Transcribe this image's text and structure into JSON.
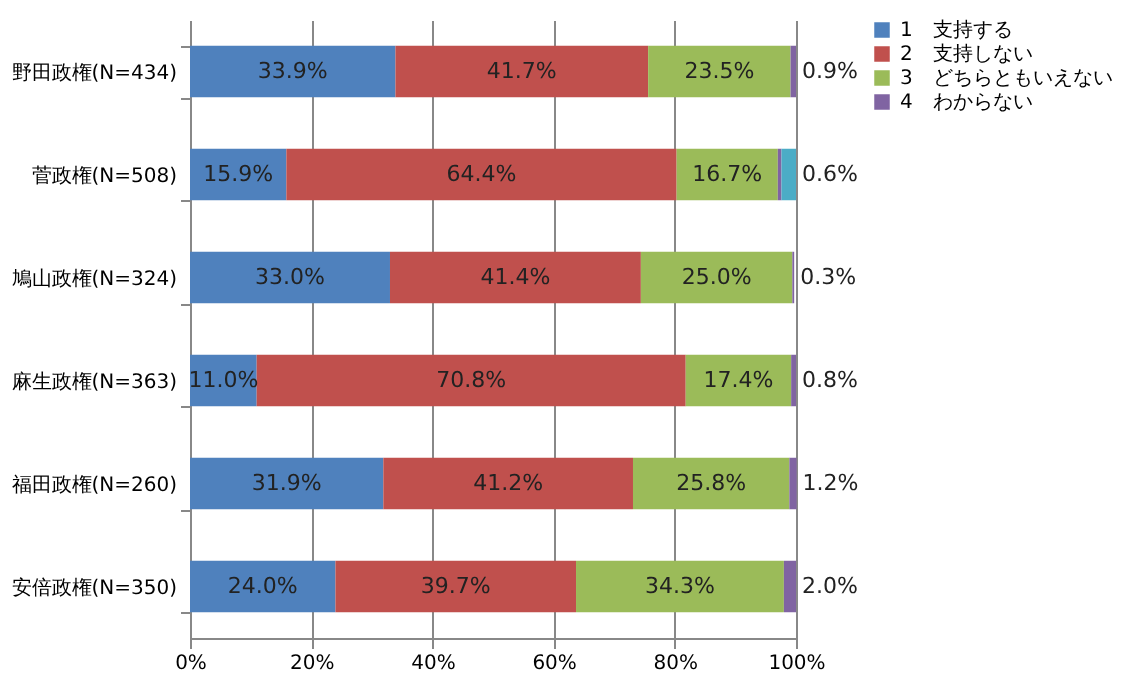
{
  "chart_data": {
    "type": "bar",
    "orientation": "horizontal",
    "stacked": true,
    "categories": [
      "野田政権(N=434)",
      "菅政権(N=508)",
      "鳩山政権(N=324)",
      "麻生政権(N=363)",
      "福田政権(N=260)",
      "安倍政権(N=350)"
    ],
    "series": [
      {
        "name": "1　支持する",
        "color": "#4f81bd",
        "values": [
          33.9,
          15.9,
          33.0,
          11.0,
          31.9,
          24.0
        ],
        "value_labels": [
          "33.9%",
          "15.9%",
          "33.0%",
          "11.0%",
          "31.9%",
          "24.0%"
        ]
      },
      {
        "name": "2　支持しない",
        "color": "#c0504d",
        "values": [
          41.7,
          64.4,
          41.4,
          70.8,
          41.2,
          39.7
        ],
        "value_labels": [
          "41.7%",
          "64.4%",
          "41.4%",
          "70.8%",
          "41.2%",
          "39.7%"
        ]
      },
      {
        "name": "3　どちらともいえない",
        "color": "#9bbb59",
        "values": [
          23.5,
          16.7,
          25.0,
          17.4,
          25.8,
          34.3
        ],
        "value_labels": [
          "23.5%",
          "16.7%",
          "25.0%",
          "17.4%",
          "25.8%",
          "34.3%"
        ]
      },
      {
        "name": "4　わからない",
        "color": "#8064a2",
        "values": [
          0.9,
          0.6,
          0.3,
          0.8,
          1.2,
          2.0
        ],
        "value_labels": [
          "0.9%",
          "0.6%",
          "0.3%",
          "0.8%",
          "1.2%",
          "2.0%"
        ]
      },
      {
        "color": "#4bacc6",
        "values": [
          null,
          2.4,
          null,
          null,
          null,
          null
        ]
      }
    ],
    "xlim": [
      0,
      100
    ],
    "xticks": [
      {
        "value": 0,
        "label": "0%"
      },
      {
        "value": 20,
        "label": "20%"
      },
      {
        "value": 40,
        "label": "40%"
      },
      {
        "value": 60,
        "label": "60%"
      },
      {
        "value": 80,
        "label": "80%"
      },
      {
        "value": 100,
        "label": "100%"
      }
    ],
    "grid": "x",
    "legend": "right"
  }
}
